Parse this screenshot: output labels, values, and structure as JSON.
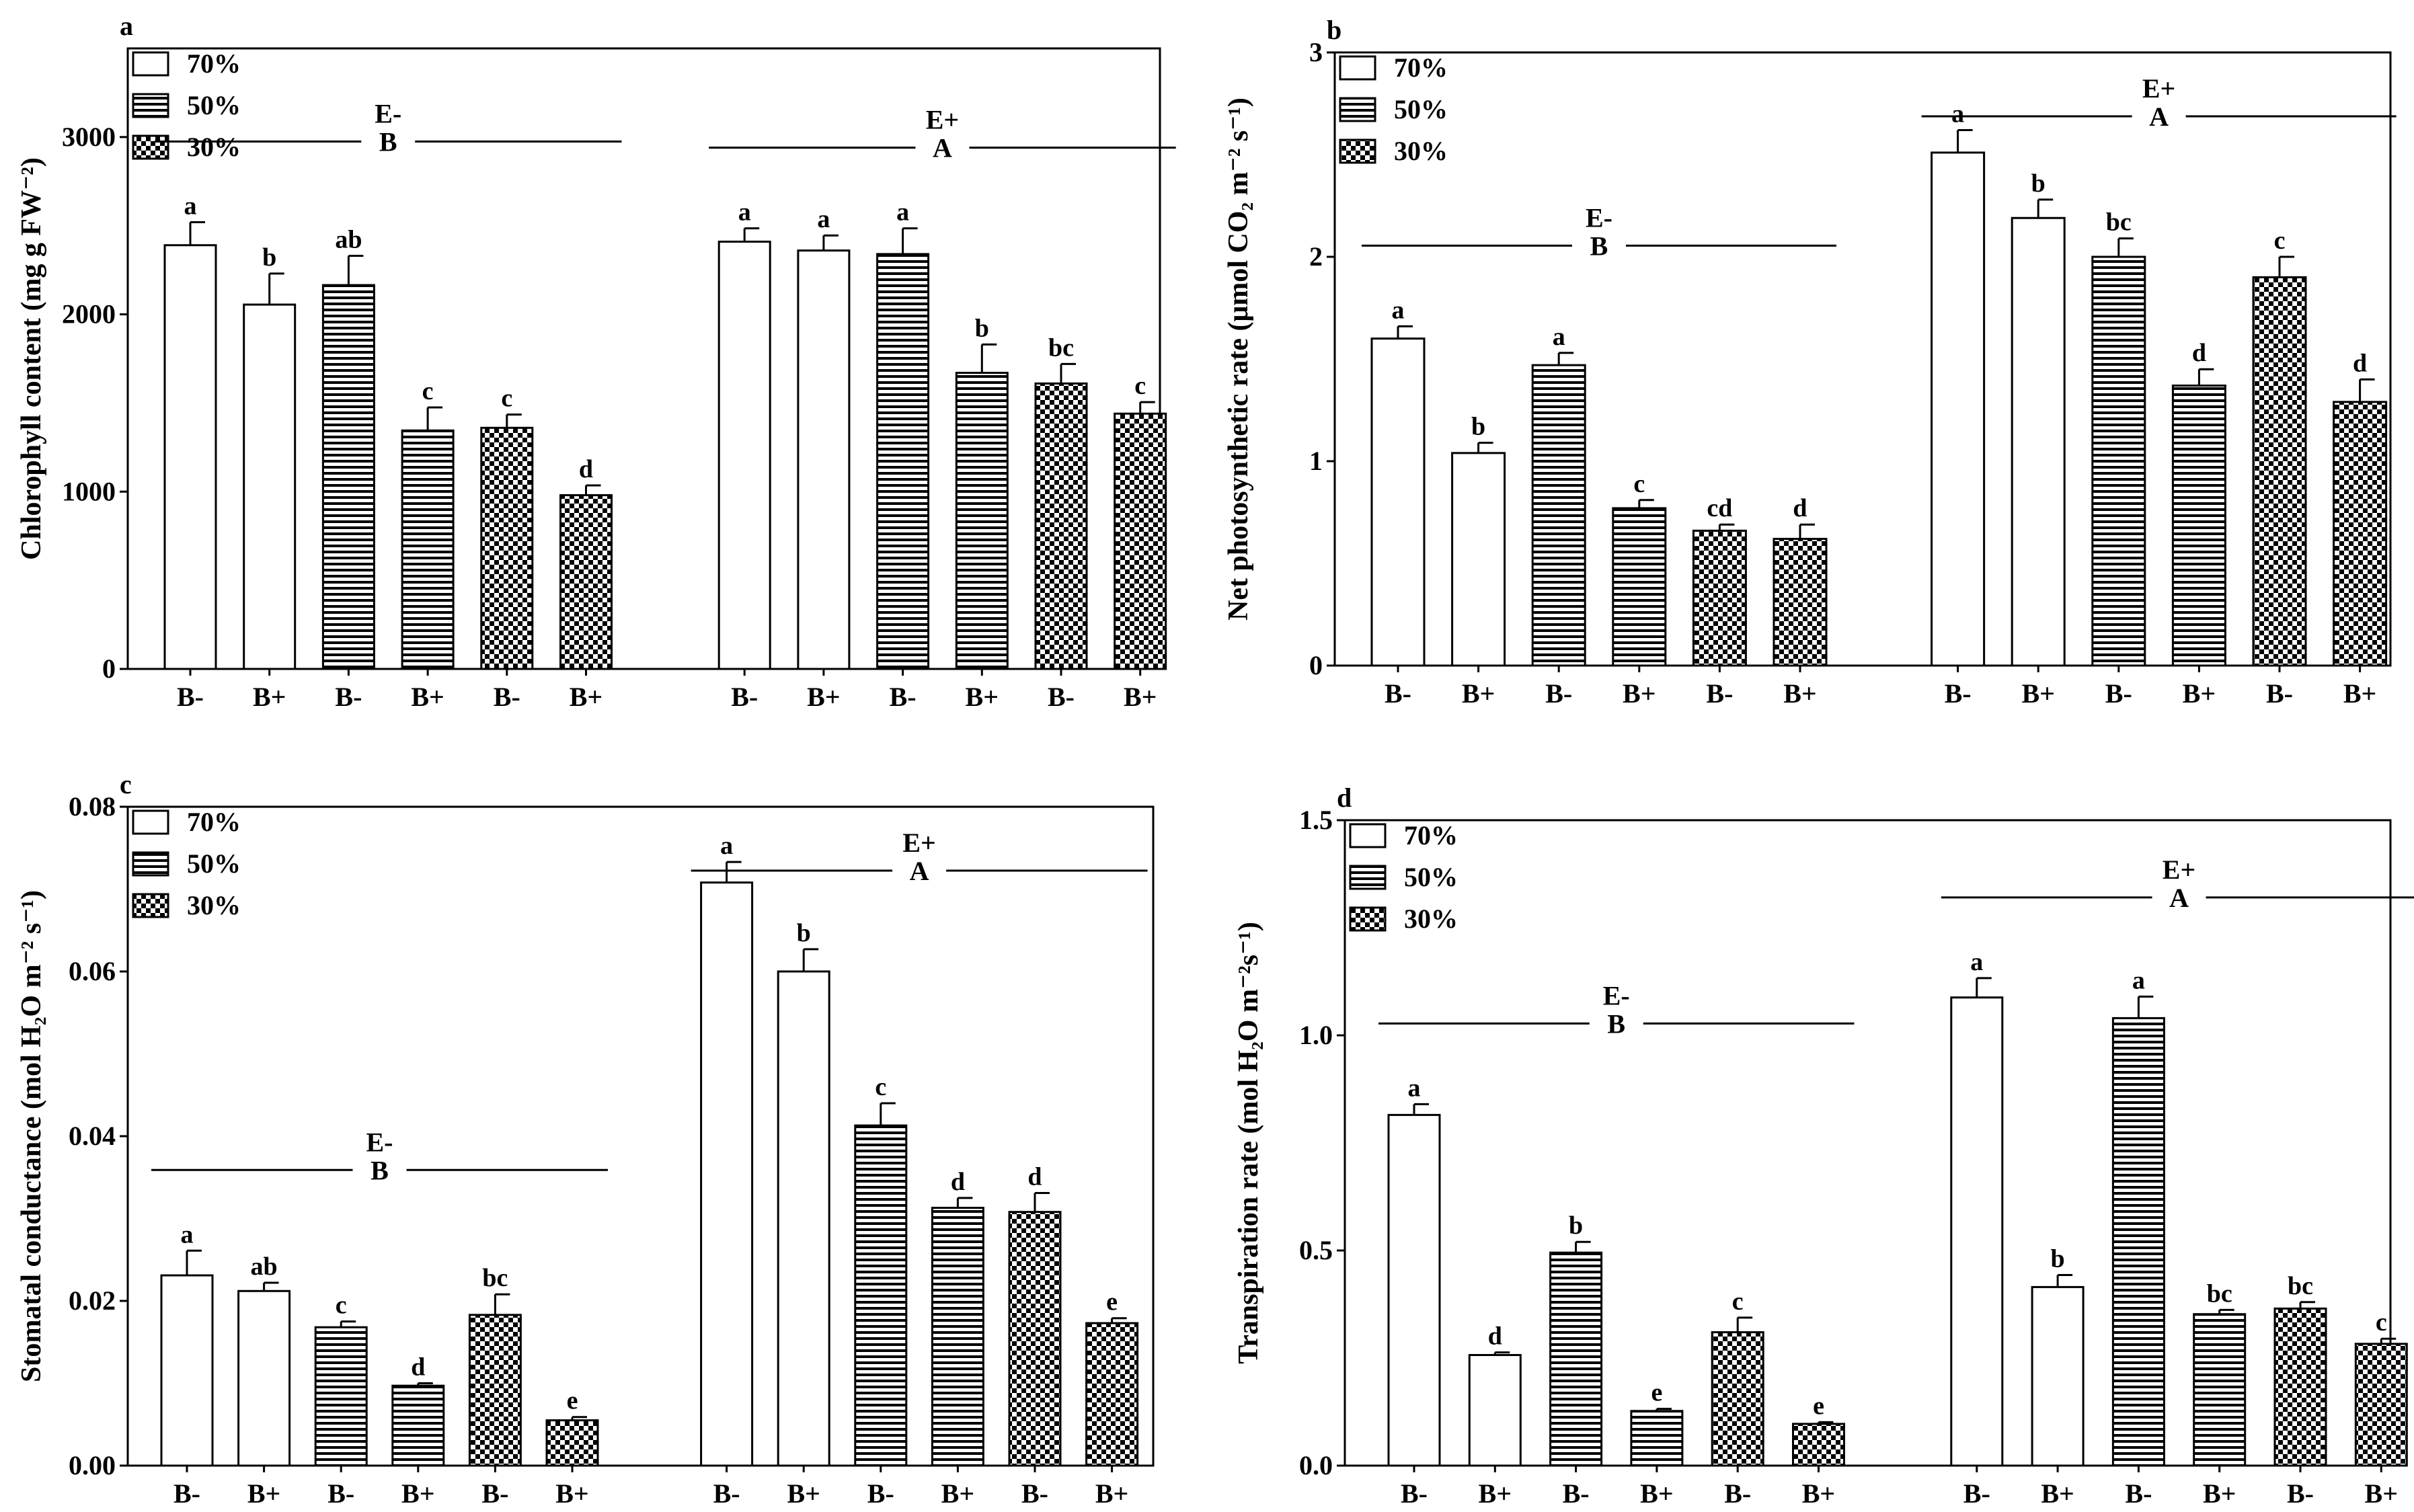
{
  "groups": [
    "E-",
    "E+"
  ],
  "group_letters": {
    "a": [
      "B",
      "A"
    ],
    "b": [
      "B",
      "A"
    ],
    "c": [
      "B",
      "A"
    ],
    "d": [
      "B",
      "A"
    ]
  },
  "legend": [
    "70%",
    "50%",
    "30%"
  ],
  "bar_xlabels": [
    "B-",
    "B+",
    "B-",
    "B+",
    "B-",
    "B+",
    "B-",
    "B+",
    "B-",
    "B+",
    "B-",
    "B+"
  ],
  "chart_data": [
    {
      "panel": "a",
      "type": "bar",
      "ylabel": "Chlorophyll content (mg g FW⁻²)",
      "ylim": [
        0,
        3500
      ],
      "yticks": [
        0,
        1000,
        2000,
        3000
      ],
      "values": [
        2390,
        2055,
        2165,
        1345,
        1360,
        980,
        2410,
        2360,
        2340,
        1670,
        1610,
        1440
      ],
      "errors": [
        130,
        175,
        165,
        130,
        75,
        55,
        75,
        85,
        145,
        160,
        110,
        65
      ],
      "letters": [
        "a",
        "b",
        "ab",
        "c",
        "c",
        "d",
        "a",
        "a",
        "a",
        "b",
        "bc",
        "c"
      ]
    },
    {
      "panel": "b",
      "type": "bar",
      "ylabel": "Net photosynthetic rate (μmol CO₂ m⁻² s⁻¹)",
      "ylim": [
        0,
        3
      ],
      "yticks": [
        0,
        1,
        2,
        3
      ],
      "values": [
        1.6,
        1.04,
        1.47,
        0.77,
        0.66,
        0.62,
        2.51,
        2.19,
        2.0,
        1.37,
        1.9,
        1.29
      ],
      "errors": [
        0.06,
        0.05,
        0.06,
        0.04,
        0.03,
        0.07,
        0.11,
        0.09,
        0.09,
        0.08,
        0.1,
        0.11
      ],
      "letters": [
        "a",
        "b",
        "a",
        "c",
        "cd",
        "d",
        "a",
        "b",
        "bc",
        "d",
        "c",
        "d"
      ]
    },
    {
      "panel": "c",
      "type": "bar",
      "ylabel": "Stomatal conductance (mol H₂O m⁻² s⁻¹)",
      "ylim": [
        0,
        0.08
      ],
      "yticks": [
        "0.00",
        "0.02",
        "0.04",
        "0.06",
        "0.08"
      ],
      "values": [
        0.0231,
        0.0212,
        0.0168,
        0.0097,
        0.0183,
        0.0055,
        0.0708,
        0.06,
        0.0413,
        0.0313,
        0.0308,
        0.0173
      ],
      "errors": [
        0.003,
        0.001,
        0.0007,
        0.0003,
        0.0025,
        0.0004,
        0.0025,
        0.0027,
        0.0027,
        0.0012,
        0.0023,
        0.0006
      ],
      "letters": [
        "a",
        "ab",
        "c",
        "d",
        "bc",
        "e",
        "a",
        "b",
        "c",
        "d",
        "d",
        "e"
      ]
    },
    {
      "panel": "d",
      "type": "bar",
      "ylabel": "Transpiration rate (mol H₂O m⁻²s⁻¹)",
      "ylim": [
        0,
        1.5
      ],
      "yticks": [
        "0.0",
        "0.5",
        "1.0",
        "1.5"
      ],
      "values": [
        0.815,
        0.257,
        0.495,
        0.127,
        0.31,
        0.097,
        1.088,
        0.415,
        1.04,
        0.352,
        0.365,
        0.283
      ],
      "errors": [
        0.025,
        0.006,
        0.025,
        0.005,
        0.034,
        0.004,
        0.045,
        0.028,
        0.05,
        0.01,
        0.015,
        0.012
      ],
      "letters": [
        "a",
        "d",
        "b",
        "e",
        "c",
        "e",
        "a",
        "b",
        "a",
        "bc",
        "bc",
        "c"
      ]
    }
  ]
}
